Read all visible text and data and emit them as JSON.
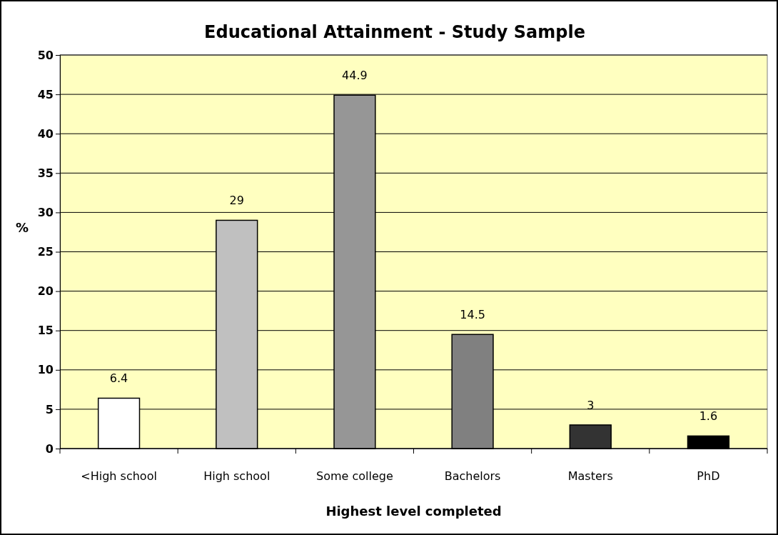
{
  "chart_data": {
    "type": "bar",
    "title": "Educational Attainment - Study Sample",
    "xlabel": "Highest level completed",
    "ylabel": "%",
    "categories": [
      "<High school",
      "High school",
      "Some college",
      "Bachelors",
      "Masters",
      "PhD"
    ],
    "values": [
      6.4,
      29,
      44.9,
      14.5,
      3,
      1.6
    ],
    "colors": [
      "#ffffff",
      "#c0c0c0",
      "#969696",
      "#808080",
      "#333333",
      "#000000"
    ],
    "ylim": [
      0,
      50
    ],
    "yticks": [
      0,
      5,
      10,
      15,
      20,
      25,
      30,
      35,
      40,
      45,
      50
    ],
    "grid": "y",
    "data_labels": true
  }
}
